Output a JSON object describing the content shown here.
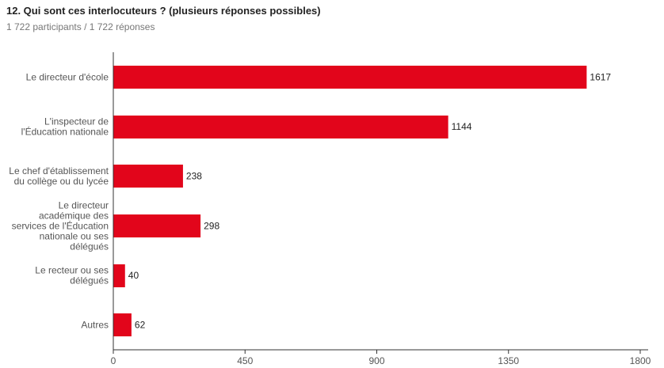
{
  "header": {
    "title": "12. Qui sont ces interlocuteurs ? (plusieurs réponses possibles)",
    "subtitle": "1 722 participants / 1 722 réponses"
  },
  "colors": {
    "bar": "#e2051b",
    "axis": "#333333"
  },
  "chart_data": {
    "type": "bar",
    "orientation": "horizontal",
    "title": "12. Qui sont ces interlocuteurs ? (plusieurs réponses possibles)",
    "categories": [
      [
        "Le directeur d'école"
      ],
      [
        "L'inspecteur de",
        "l'Éducation nationale"
      ],
      [
        "Le chef d'établissement",
        "du collège ou du lycée"
      ],
      [
        "Le directeur",
        "académique des",
        "services de l'Éducation",
        "nationale ou ses",
        "délégués"
      ],
      [
        "Le recteur ou ses",
        "délégués"
      ],
      [
        "Autres"
      ]
    ],
    "values": [
      1617,
      1144,
      238,
      298,
      40,
      62
    ],
    "xlim": [
      0,
      1800
    ],
    "xticks": [
      "0",
      "450",
      "900",
      "1350",
      "1800"
    ],
    "xtick_values": [
      0,
      450,
      900,
      1350,
      1800
    ],
    "grid": false,
    "legend": "none"
  }
}
